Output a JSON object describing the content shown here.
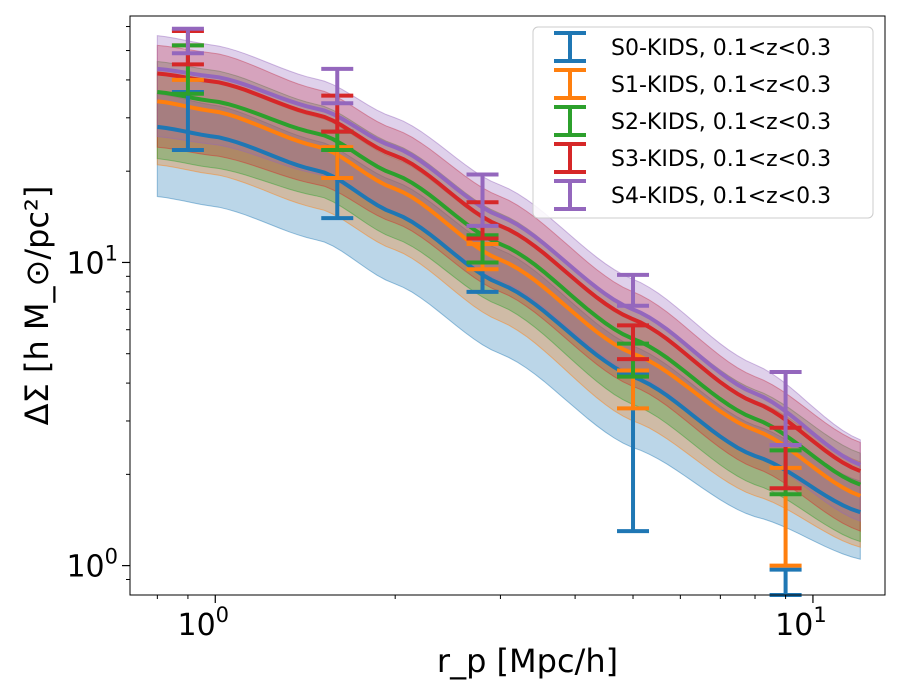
{
  "chart_data": {
    "type": "line",
    "title": "",
    "xlabel": "r_p [Mpc/h]",
    "ylabel": "ΔΣ [h M_⊙/pc²]",
    "xscale": "log",
    "yscale": "log",
    "xlim": [
      0.72,
      13.2
    ],
    "ylim": [
      0.8,
      65
    ],
    "x_ticks": [
      {
        "value": 1,
        "base": "10",
        "exp": "0"
      },
      {
        "value": 10,
        "base": "10",
        "exp": "1"
      }
    ],
    "y_ticks": [
      {
        "value": 1,
        "base": "10",
        "exp": "0"
      },
      {
        "value": 10,
        "base": "10",
        "exp": "1"
      }
    ],
    "grid": false,
    "legend_position": "top-right",
    "series": [
      {
        "name": "S0-KIDS, 0.1<z<0.3",
        "color": "#1f77b4",
        "model": {
          "x": [
            0.8,
            1.0,
            1.5,
            2.0,
            3.0,
            5.0,
            8.0,
            12.0
          ],
          "y": [
            28,
            26,
            20,
            14.5,
            8.5,
            4.2,
            2.3,
            1.5
          ]
        },
        "band": {
          "lower": [
            16.5,
            15.3,
            11.8,
            8.5,
            5.0,
            2.45,
            1.45,
            1.05
          ],
          "upper": [
            36,
            33,
            25,
            18.5,
            11,
            5.3,
            2.9,
            1.9
          ]
        },
        "points": [
          {
            "x": 0.9,
            "y": 30,
            "lo": 23.5,
            "hi": 36.5
          },
          {
            "x": 1.6,
            "y": 18.5,
            "lo": 14,
            "hi": 23.5
          },
          {
            "x": 2.8,
            "y": 10.0,
            "lo": 8.0,
            "hi": 11.5
          },
          {
            "x": 5.0,
            "y": 3.8,
            "lo": 1.3,
            "hi": 4.3
          },
          {
            "x": 9.0,
            "y": 0.95,
            "lo": 0.8,
            "hi": 0.97
          }
        ]
      },
      {
        "name": "S1-KIDS, 0.1<z<0.3",
        "color": "#ff7f0e",
        "model": {
          "x": [
            0.8,
            1.0,
            1.5,
            2.0,
            3.0,
            5.0,
            8.0,
            12.0
          ],
          "y": [
            34,
            31.5,
            24,
            17.5,
            10.2,
            5.0,
            2.8,
            1.7
          ]
        },
        "band": {
          "lower": [
            21,
            19.5,
            15,
            11,
            6.4,
            3.0,
            1.7,
            1.15
          ],
          "upper": [
            42,
            39,
            30,
            22,
            13,
            6.4,
            3.5,
            2.2
          ]
        },
        "points": [
          {
            "x": 0.9,
            "y": 46,
            "lo": 40,
            "hi": 52
          },
          {
            "x": 1.6,
            "y": 21.5,
            "lo": 19,
            "hi": 24
          },
          {
            "x": 2.8,
            "y": 10.5,
            "lo": 9.5,
            "hi": 11.5
          },
          {
            "x": 5.0,
            "y": 3.8,
            "lo": 3.3,
            "hi": 4.4
          },
          {
            "x": 9.0,
            "y": 1.5,
            "lo": 1.0,
            "hi": 2.1
          }
        ]
      },
      {
        "name": "S2-KIDS, 0.1<z<0.3",
        "color": "#2ca02c",
        "model": {
          "x": [
            0.8,
            1.0,
            1.5,
            2.0,
            3.0,
            5.0,
            8.0,
            12.0
          ],
          "y": [
            36.5,
            34,
            26.5,
            19.5,
            11.5,
            5.6,
            3.05,
            1.85
          ]
        },
        "band": {
          "lower": [
            22,
            20.5,
            16.5,
            12,
            7.2,
            3.4,
            1.85,
            1.2
          ],
          "upper": [
            46,
            43,
            33,
            24.5,
            14.5,
            7.0,
            3.8,
            2.35
          ]
        },
        "points": [
          {
            "x": 0.9,
            "y": 44,
            "lo": 36,
            "hi": 52
          },
          {
            "x": 1.6,
            "y": 25,
            "lo": 23.5,
            "hi": 27
          },
          {
            "x": 2.8,
            "y": 11.2,
            "lo": 10.0,
            "hi": 12.3
          },
          {
            "x": 5.0,
            "y": 4.8,
            "lo": 4.2,
            "hi": 5.4
          },
          {
            "x": 9.0,
            "y": 2.05,
            "lo": 1.72,
            "hi": 2.4
          }
        ]
      },
      {
        "name": "S3-KIDS, 0.1<z<0.3",
        "color": "#d62728",
        "model": {
          "x": [
            0.8,
            1.0,
            1.5,
            2.0,
            3.0,
            5.0,
            8.0,
            12.0
          ],
          "y": [
            42,
            39.5,
            30.5,
            22.5,
            13.2,
            6.5,
            3.45,
            2.05
          ]
        },
        "band": {
          "lower": [
            24,
            22.5,
            18,
            13.5,
            8.0,
            3.9,
            2.1,
            1.3
          ],
          "upper": [
            52,
            49,
            37,
            27.5,
            16.5,
            8.0,
            4.2,
            2.55
          ]
        },
        "points": [
          {
            "x": 0.9,
            "y": 52,
            "lo": 45,
            "hi": 58
          },
          {
            "x": 1.6,
            "y": 31,
            "lo": 27,
            "hi": 35.5
          },
          {
            "x": 2.8,
            "y": 13.8,
            "lo": 12.0,
            "hi": 15.8
          },
          {
            "x": 5.0,
            "y": 5.5,
            "lo": 4.8,
            "hi": 6.2
          },
          {
            "x": 9.0,
            "y": 2.3,
            "lo": 1.8,
            "hi": 2.85
          }
        ]
      },
      {
        "name": "S4-KIDS, 0.1<z<0.3",
        "color": "#9467bd",
        "model": {
          "x": [
            0.8,
            1.0,
            1.5,
            2.0,
            3.0,
            5.0,
            8.0,
            12.0
          ],
          "y": [
            43.5,
            41,
            32,
            24,
            14.2,
            7.0,
            3.7,
            2.15
          ]
        },
        "band": {
          "lower": [
            26,
            24.5,
            19.5,
            14.5,
            8.7,
            4.3,
            2.3,
            1.4
          ],
          "upper": [
            56,
            52,
            40,
            30,
            18,
            8.8,
            4.6,
            2.6
          ]
        },
        "points": [
          {
            "x": 0.9,
            "y": 54,
            "lo": 49,
            "hi": 59
          },
          {
            "x": 1.6,
            "y": 38,
            "lo": 33.5,
            "hi": 43.5
          },
          {
            "x": 2.8,
            "y": 16,
            "lo": 13.2,
            "hi": 19.5
          },
          {
            "x": 5.0,
            "y": 8.1,
            "lo": 7.2,
            "hi": 9.1
          },
          {
            "x": 9.0,
            "y": 3.4,
            "lo": 2.5,
            "hi": 4.35
          }
        ]
      }
    ]
  }
}
